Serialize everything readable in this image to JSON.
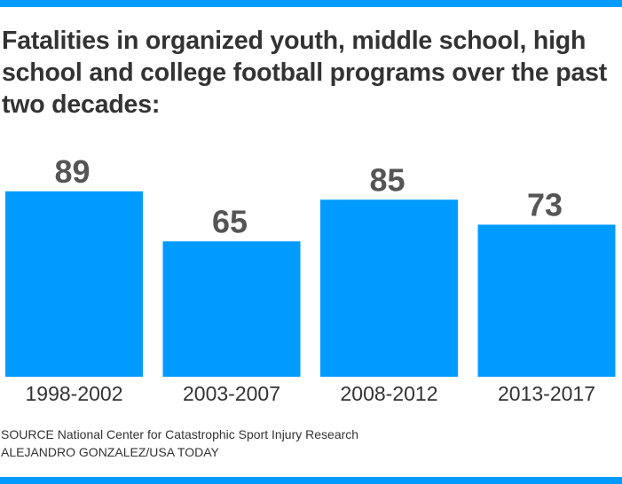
{
  "title": "Fatalities in organized youth, middle school, high school and college football programs over the past two decades:",
  "accent_color": "#009bff",
  "text_color": "#333333",
  "value_label_color": "#555555",
  "source": "SOURCE National Center for Catastrophic Sport Injury Research",
  "credit": "ALEJANDRO GONZALEZ/USA TODAY",
  "chart_data": {
    "type": "bar",
    "title": "Fatalities in organized youth, middle school, high school and college football programs over the past two decades:",
    "categories": [
      "1998-2002",
      "2003-2007",
      "2008-2012",
      "2013-2017"
    ],
    "values": [
      89,
      65,
      85,
      73
    ],
    "xlabel": "",
    "ylabel": "",
    "ylim": [
      0,
      100
    ],
    "grid": false,
    "legend": "none"
  }
}
